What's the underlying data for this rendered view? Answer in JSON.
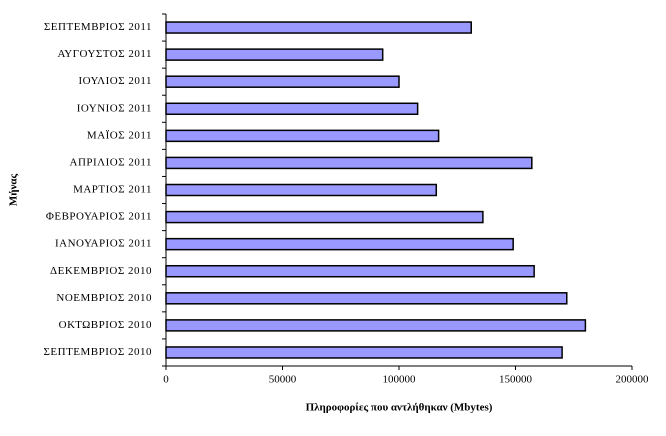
{
  "chart_data": {
    "type": "bar",
    "orientation": "horizontal",
    "x_label": "Πληροφορίες που αντλήθηκαν (Mbytes)",
    "y_label": "Μήνας",
    "categories": [
      "ΣΕΠΤΕΜΒΡΙΟΣ 2011",
      "ΑΥΓΟΥΣΤΟΣ 2011",
      "ΙΟΥΛΙΟΣ 2011",
      "ΙΟΥΝΙΟΣ 2011",
      "ΜΑΪΟΣ 2011",
      "ΑΠΡΙΛΙΟΣ 2011",
      "ΜΑΡΤΙΟΣ 2011",
      "ΦΕΒΡΟΥΑΡΙΟΣ 2011",
      "ΙΑΝΟΥΑΡΙΟΣ 2011",
      "ΔΕΚΕΜΒΡΙΟΣ 2010",
      "ΝΟΕΜΒΡΙΟΣ 2010",
      "ΟΚΤΩΒΡΙΟΣ 2010",
      "ΣΕΠΤΕΜΒΡΙΟΣ 2010"
    ],
    "values": [
      131000,
      93000,
      100000,
      108000,
      117000,
      157000,
      116000,
      136000,
      149000,
      158000,
      172000,
      180000,
      170000
    ],
    "color": "#9999ff",
    "xlim": [
      0,
      200000
    ],
    "xticks": [
      0,
      50000,
      100000,
      150000,
      200000
    ],
    "grid": false
  }
}
